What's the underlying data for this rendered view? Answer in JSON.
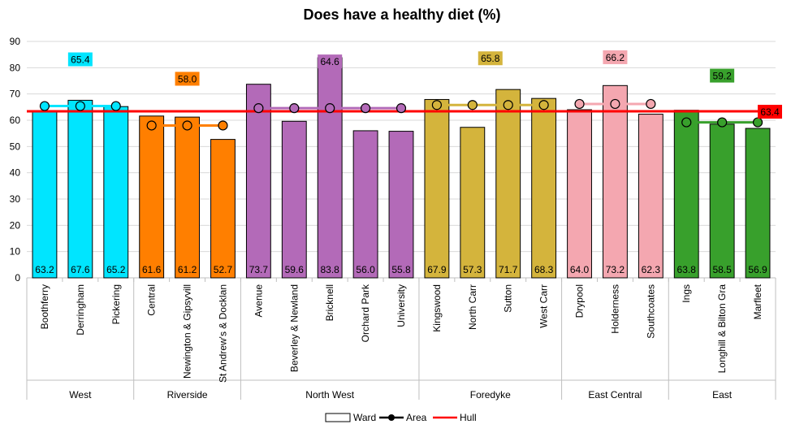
{
  "chart_data": {
    "type": "bar",
    "title": "Does have a healthy diet (%)",
    "ylim": [
      0,
      90
    ],
    "yticks": [
      0,
      10,
      20,
      30,
      40,
      50,
      60,
      70,
      80,
      90
    ],
    "grid": true,
    "legend_position": "bottom",
    "legend": {
      "ward": "Ward",
      "area": "Area",
      "hull": "Hull"
    },
    "hull": {
      "name": "Hull",
      "value": 63.4,
      "color": "#ff0000"
    },
    "groups": [
      {
        "name": "West",
        "color": "#00e5ff",
        "area_value": 65.4,
        "wards": [
          {
            "name": "Boothferry",
            "value": 63.2
          },
          {
            "name": "Derringham",
            "value": 67.6
          },
          {
            "name": "Pickering",
            "value": 65.2
          }
        ]
      },
      {
        "name": "Riverside",
        "color": "#ff7f00",
        "area_value": 58.0,
        "wards": [
          {
            "name": "Central",
            "value": 61.6
          },
          {
            "name": "Newington & Gipsyvill",
            "value": 61.2
          },
          {
            "name": "St Andrew's & Docklan",
            "value": 52.7
          }
        ]
      },
      {
        "name": "North West",
        "color": "#b36ab8",
        "area_value": 64.6,
        "wards": [
          {
            "name": "Avenue",
            "value": 73.7
          },
          {
            "name": "Beverley & Newland",
            "value": 59.6
          },
          {
            "name": "Bricknell",
            "value": 83.8
          },
          {
            "name": "Orchard Park",
            "value": 56.0
          },
          {
            "name": "University",
            "value": 55.8
          }
        ]
      },
      {
        "name": "Foredyke",
        "color": "#d4b43c",
        "area_value": 65.8,
        "wards": [
          {
            "name": "Kingswood",
            "value": 67.9
          },
          {
            "name": "North Carr",
            "value": 57.3
          },
          {
            "name": "Sutton",
            "value": 71.7
          },
          {
            "name": "West Carr",
            "value": 68.3
          }
        ]
      },
      {
        "name": "East Central",
        "color": "#f4a7b0",
        "area_value": 66.2,
        "wards": [
          {
            "name": "Drypool",
            "value": 64.0
          },
          {
            "name": "Holderness",
            "value": 73.2
          },
          {
            "name": "Southcoates",
            "value": 62.3
          }
        ]
      },
      {
        "name": "East",
        "color": "#38a02c",
        "area_value": 59.2,
        "wards": [
          {
            "name": "Ings",
            "value": 63.8
          },
          {
            "name": "Longhill & Bilton Gra",
            "value": 58.5
          },
          {
            "name": "Marfleet",
            "value": 56.9
          }
        ]
      }
    ]
  }
}
